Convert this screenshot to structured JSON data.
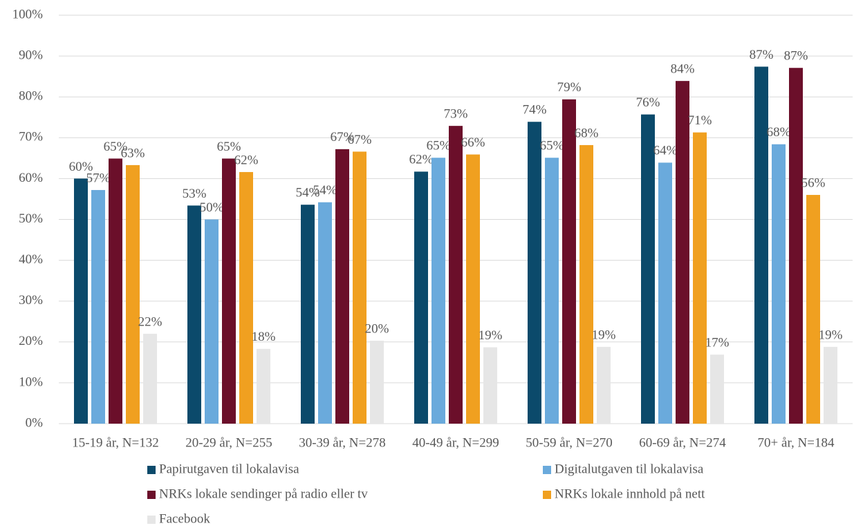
{
  "chart_data": {
    "type": "bar",
    "categories": [
      "15-19 år, N=132",
      "20-29 år, N=255",
      "30-39 år, N=278",
      "40-49 år, N=299",
      "50-59 år, N=270",
      "60-69 år, N=274",
      "70+ år, N=184"
    ],
    "series": [
      {
        "name": "Papirutgaven til lokalavisa",
        "color": "#0b4a6b",
        "values": [
          60,
          53.4,
          53.6,
          61.7,
          73.9,
          75.7,
          87.4
        ],
        "value_labels": [
          "60%",
          "53%",
          "54%",
          "62%",
          "74%",
          "76%",
          "87%"
        ]
      },
      {
        "name": "Digitalutgaven til lokalavisa",
        "color": "#6aaadc",
        "values": [
          57.2,
          50,
          54.2,
          65.1,
          65.1,
          63.9,
          68.4
        ],
        "value_labels": [
          "57%",
          "50%",
          "54%",
          "65%",
          "65%",
          "64%",
          "68%"
        ]
      },
      {
        "name": "NRKs lokale sendinger på radio eller tv",
        "color": "#6b0f2a",
        "values": [
          64.9,
          64.9,
          67.2,
          72.9,
          79.4,
          83.9,
          87.1
        ],
        "value_labels": [
          "65%",
          "65%",
          "67%",
          "73%",
          "79%",
          "84%",
          "87%"
        ]
      },
      {
        "name": "NRKs lokale innhold på nett",
        "color": "#f0a020",
        "values": [
          63.3,
          61.6,
          66.6,
          65.9,
          68.2,
          71.3,
          56
        ],
        "value_labels": [
          "63%",
          "62%",
          "67%",
          "66%",
          "68%",
          "71%",
          "56%"
        ]
      },
      {
        "name": "Facebook",
        "color": "#e6e6e6",
        "values": [
          22,
          18.3,
          20.3,
          18.7,
          18.8,
          16.9,
          18.8
        ],
        "value_labels": [
          "22%",
          "18%",
          "20%",
          "19%",
          "19%",
          "17%",
          "19%"
        ]
      }
    ],
    "ylim": [
      0,
      100
    ],
    "yticks": [
      {
        "value": 0,
        "label": "0%"
      },
      {
        "value": 10,
        "label": "10%"
      },
      {
        "value": 20,
        "label": "20%"
      },
      {
        "value": 30,
        "label": "30%"
      },
      {
        "value": 40,
        "label": "40%"
      },
      {
        "value": 50,
        "label": "50%"
      },
      {
        "value": 60,
        "label": "60%"
      },
      {
        "value": 70,
        "label": "70%"
      },
      {
        "value": 80,
        "label": "80%"
      },
      {
        "value": 90,
        "label": "90%"
      },
      {
        "value": 100,
        "label": "100%"
      }
    ],
    "grid": true
  }
}
